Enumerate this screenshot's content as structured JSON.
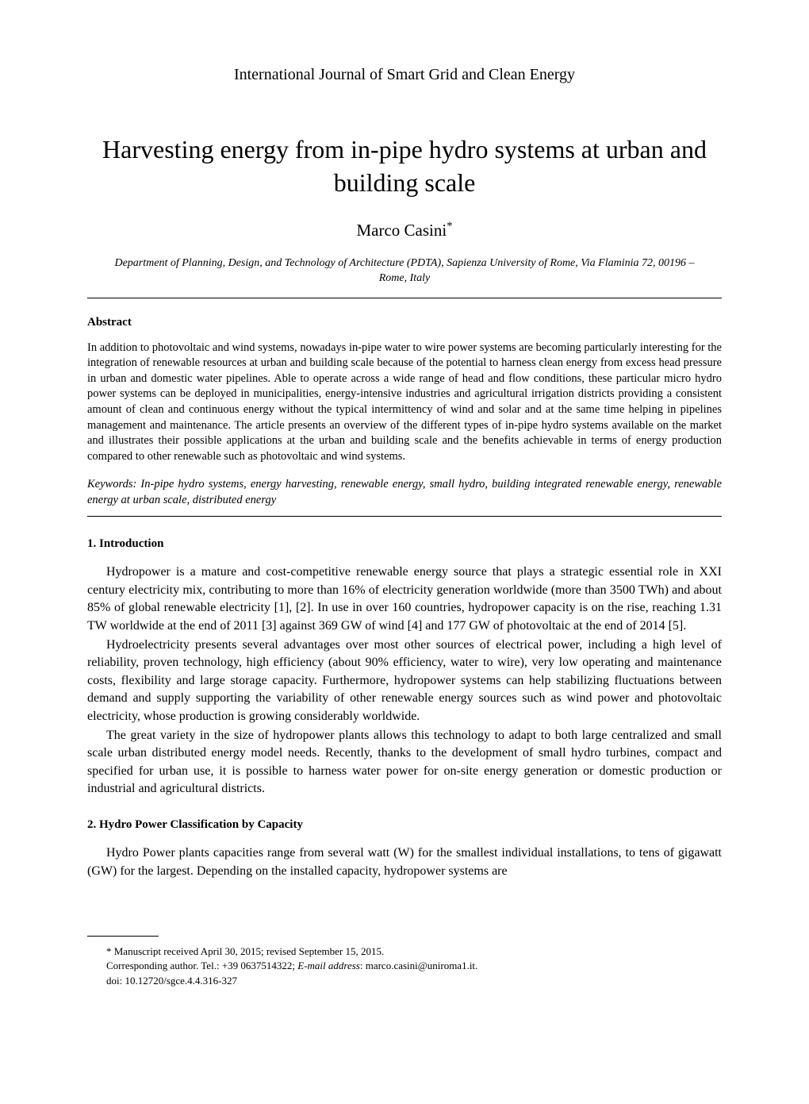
{
  "journal": "International Journal of Smart Grid and Clean Energy",
  "title": "Harvesting energy from in-pipe hydro systems at urban and building scale",
  "author": "Marco Casini",
  "author_marker": "*",
  "affiliation": "Department of Planning, Design, and Technology of Architecture (PDTA), Sapienza University of Rome, Via Flaminia 72, 00196 – Rome, Italy",
  "abstract_label": "Abstract",
  "abstract_body": "In addition to photovoltaic and wind systems, nowadays in-pipe water to wire power systems are becoming particularly interesting for the integration of renewable resources at urban and building scale because of the potential to harness clean energy from excess head pressure in urban and domestic water pipelines. Able to operate across a wide range of head and flow conditions, these particular micro hydro power systems can be deployed in municipalities, energy-intensive industries and agricultural irrigation districts providing a consistent amount of clean and continuous energy without the typical intermittency of wind and solar and at the same time helping in pipelines management and maintenance. The article presents an overview of the different types of in-pipe hydro systems available on the market and illustrates their possible applications at the urban and building scale and the benefits achievable in terms of energy production compared to other renewable such as photovoltaic and wind systems.",
  "keywords_label": "Keywords:",
  "keywords_body": " In-pipe hydro systems, energy harvesting, renewable energy, small hydro, building integrated renewable energy, renewable energy at urban scale, distributed energy",
  "section1_heading": "1. Introduction",
  "section1_p1": "Hydropower is a mature and cost-competitive renewable energy source that plays a strategic essential role in XXI century electricity mix, contributing to more than 16% of electricity generation worldwide (more than 3500 TWh) and about 85% of global renewable electricity [1], [2]. In use in over 160 countries, hydropower capacity is on the rise, reaching 1.31 TW worldwide at the end of 2011 [3] against 369 GW of wind [4] and 177 GW of photovoltaic at the end of 2014 [5].",
  "section1_p2": "Hydroelectricity presents several advantages over most other sources of electrical power, including a high level of reliability, proven technology, high efficiency (about 90% efficiency, water to wire), very low operating and maintenance costs, flexibility and large storage capacity. Furthermore, hydropower systems can help stabilizing fluctuations between demand and supply supporting the variability of other renewable energy sources such as wind power and photovoltaic electricity, whose production is growing considerably worldwide.",
  "section1_p3": "The great variety in the size of hydropower plants allows this technology to adapt to both large centralized and small scale urban distributed energy model needs. Recently, thanks to the development of small hydro turbines, compact and specified for urban use, it is possible to harness water power for on-site energy generation or domestic production or industrial and agricultural districts.",
  "section2_heading": "2. Hydro Power Classification by Capacity",
  "section2_p1": "Hydro Power plants capacities range from several watt (W) for the smallest individual installations, to tens of gigawatt (GW) for the largest. Depending on the installed capacity, hydropower systems are",
  "footnote_manuscript": "* Manuscript received April 30, 2015; revised September 15, 2015.",
  "footnote_corresponding_pre": "Corresponding author. Tel.: +39 0637514322; ",
  "footnote_email_label": "E-mail address",
  "footnote_email_value": ": marco.casini@uniroma1.it.",
  "footnote_doi": "doi: 10.12720/sgce.4.4.316-327"
}
